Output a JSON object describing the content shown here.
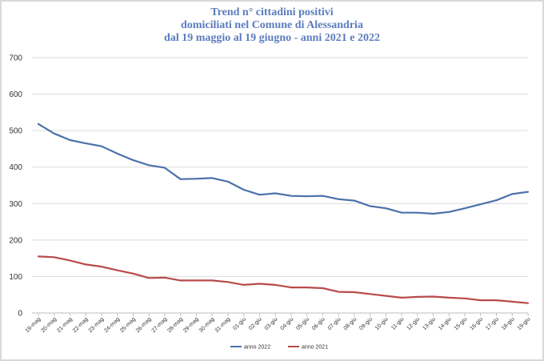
{
  "chart_data": {
    "type": "line",
    "title": [
      "Trend n° cittadini positivi",
      "domiciliati nel Comune di Alessandria",
      "dal 19 maggio al 19 giugno - anni 2021 e 2022"
    ],
    "xlabel": "",
    "ylabel": "",
    "ylim": [
      0,
      700
    ],
    "yticks": [
      0,
      100,
      200,
      300,
      400,
      500,
      600,
      700
    ],
    "grid": true,
    "legend_position": "bottom",
    "categories": [
      "19-mag",
      "20-mag",
      "21-mag",
      "22-mag",
      "23-mag",
      "24-mag",
      "25-mag",
      "26-mag",
      "27-mag",
      "28-mag",
      "29-mag",
      "30-mag",
      "31-mag",
      "01-giu",
      "02-giu",
      "03-giu",
      "04-giu",
      "05-giu",
      "06-giu",
      "07-giu",
      "08-giu",
      "09-giu",
      "10-giu",
      "11-giu",
      "12-giu",
      "13-giu",
      "14-giu",
      "15-giu",
      "16-giu",
      "17-giu",
      "18-giu",
      "19-giu"
    ],
    "series": [
      {
        "name": "anno 2022",
        "color": "#4a72a8",
        "values": [
          518,
          492,
          474,
          465,
          457,
          437,
          419,
          405,
          398,
          367,
          368,
          370,
          360,
          338,
          324,
          328,
          321,
          320,
          321,
          312,
          308,
          293,
          287,
          275,
          275,
          272,
          277,
          287,
          298,
          309,
          326,
          332
        ]
      },
      {
        "name": "anno 2021",
        "color": "#b84a4a",
        "values": [
          155,
          153,
          144,
          133,
          127,
          117,
          108,
          96,
          97,
          89,
          89,
          89,
          85,
          77,
          80,
          77,
          70,
          70,
          68,
          58,
          57,
          52,
          47,
          42,
          44,
          45,
          42,
          40,
          35,
          35,
          31,
          27
        ]
      }
    ]
  }
}
